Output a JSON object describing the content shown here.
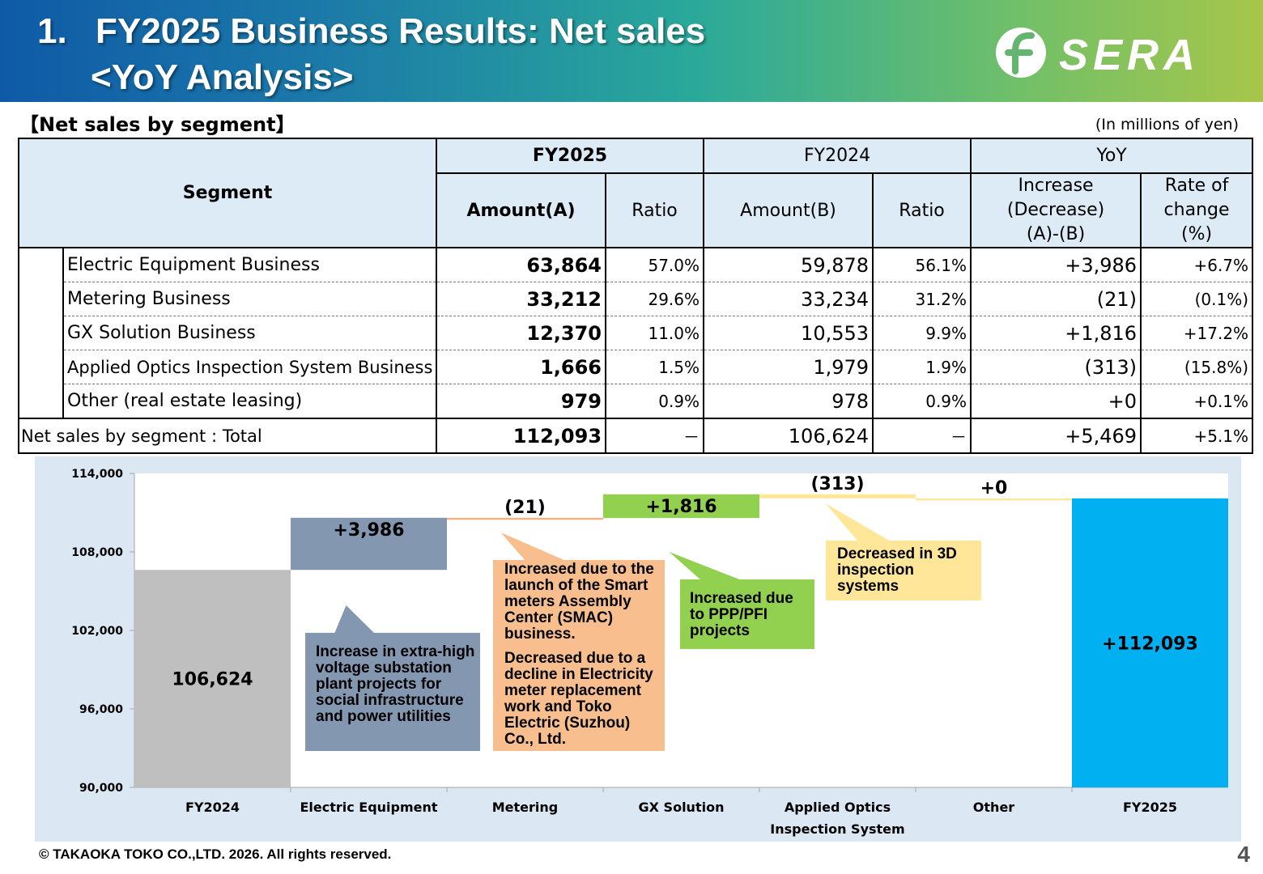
{
  "header": {
    "title_number": "1.",
    "title_line1": "FY2025 Business Results: Net sales",
    "title_line2": "<YoY Analysis>",
    "brand_name": "SERA",
    "colors": {
      "gradient_start": "#0f5aa7",
      "gradient_end": "#a7c64a"
    }
  },
  "section": {
    "label": "【Net sales by segment】",
    "unit": "(In millions of yen)"
  },
  "table": {
    "segment_header": "Segment",
    "fy2025_header": "FY2025",
    "fy2024_header": "FY2024",
    "yoy_header": "YoY",
    "amount_a": "Amount(A)",
    "ratio": "Ratio",
    "amount_b": "Amount(B)",
    "increase_l1": "Increase",
    "increase_l2": "(Decrease)",
    "increase_l3": "(A)-(B)",
    "rate_l1": "Rate of",
    "rate_l2": "change",
    "rate_l3": "(%)",
    "rows": [
      {
        "segment": "Electric Equipment Business",
        "fy2025_amount": "63,864",
        "fy2025_ratio": "57.0%",
        "fy2024_amount": "59,878",
        "fy2024_ratio": "56.1%",
        "yoy_change": "+3,986",
        "yoy_rate": "+6.7%"
      },
      {
        "segment": "Metering Business",
        "fy2025_amount": "33,212",
        "fy2025_ratio": "29.6%",
        "fy2024_amount": "33,234",
        "fy2024_ratio": "31.2%",
        "yoy_change": "(21)",
        "yoy_rate": "(0.1%)"
      },
      {
        "segment": "GX Solution Business",
        "fy2025_amount": "12,370",
        "fy2025_ratio": "11.0%",
        "fy2024_amount": "10,553",
        "fy2024_ratio": "9.9%",
        "yoy_change": "+1,816",
        "yoy_rate": "+17.2%"
      },
      {
        "segment": "Applied Optics Inspection System Business",
        "fy2025_amount": "1,666",
        "fy2025_ratio": "1.5%",
        "fy2024_amount": "1,979",
        "fy2024_ratio": "1.9%",
        "yoy_change": "(313)",
        "yoy_rate": "(15.8%)"
      },
      {
        "segment": "Other (real estate leasing)",
        "fy2025_amount": "979",
        "fy2025_ratio": "0.9%",
        "fy2024_amount": "978",
        "fy2024_ratio": "0.9%",
        "yoy_change": "+0",
        "yoy_rate": "+0.1%"
      }
    ],
    "total": {
      "segment": "Net sales by segment : Total",
      "fy2025_amount": "112,093",
      "fy2025_ratio": "－",
      "fy2024_amount": "106,624",
      "fy2024_ratio": "－",
      "yoy_change": "+5,469",
      "yoy_rate": "+5.1%"
    }
  },
  "chart_data": {
    "type": "bar",
    "subtype": "waterfall",
    "categories": [
      "FY2024",
      "Electric Equipment",
      "Metering",
      "GX Solution",
      "Applied Optics",
      "Other",
      "FY2025"
    ],
    "category_second_lines": [
      "",
      "",
      "",
      "",
      "Inspection System",
      "",
      ""
    ],
    "values": [
      106624,
      3986,
      -21,
      1816,
      -313,
      0,
      112093
    ],
    "bar_kinds": [
      "total",
      "delta",
      "delta",
      "delta",
      "delta",
      "delta",
      "total"
    ],
    "data_labels": [
      "106,624",
      "+3,986",
      "(21)",
      "+1,816",
      "(313)",
      "+0",
      "+112,093"
    ],
    "colors": [
      "#bfbfbf",
      "#8497b0",
      "#f4b183",
      "#92d050",
      "#ffe699",
      "#ffe699",
      "#00b0f0"
    ],
    "ylim": [
      90000,
      114000
    ],
    "yticks": [
      90000,
      96000,
      102000,
      108000,
      114000
    ],
    "ytick_labels": [
      "90,000",
      "96,000",
      "102,000",
      "108,000",
      "114,000"
    ],
    "title": "",
    "xlabel": "",
    "ylabel": "",
    "grid": false,
    "annotations": [
      {
        "category_index": 1,
        "color": "#8497b0",
        "paragraphs": [
          "Increase in extra-high voltage substation plant projects for social infrastructure and power utilities"
        ]
      },
      {
        "category_index": 2,
        "color": "#f8be8e",
        "paragraphs": [
          "Increased due to the launch of the Smart meters Assembly Center (SMAC) business.",
          "Decreased due to a decline in Electricity meter replacement work and Toko Electric (Suzhou) Co., Ltd."
        ]
      },
      {
        "category_index": 3,
        "color": "#92d050",
        "paragraphs": [
          "Increased due to PPP/PFI projects"
        ]
      },
      {
        "category_index": 4,
        "color": "#ffe699",
        "paragraphs": [
          "Decreased in 3D inspection systems"
        ]
      }
    ]
  },
  "footer": {
    "copyright": "© TAKAOKA TOKO CO.,LTD. 2026. All rights reserved.",
    "page_number": "4"
  }
}
